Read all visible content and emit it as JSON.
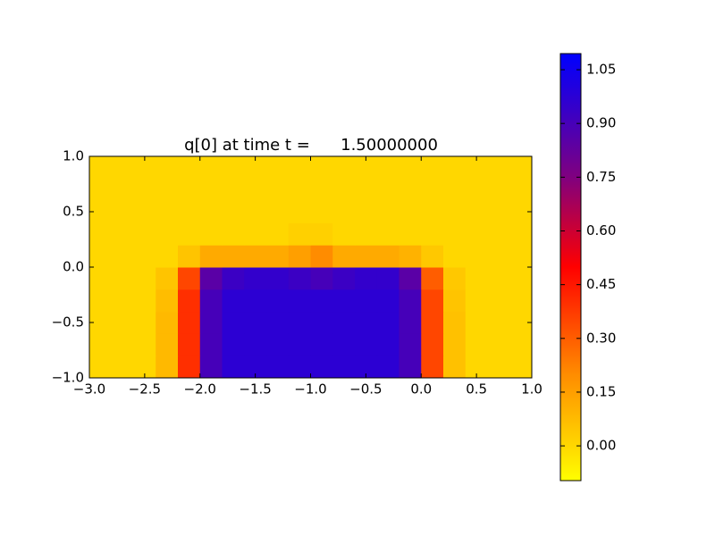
{
  "chart_data": {
    "type": "heatmap",
    "title": "q[0] at time t =      1.50000000",
    "x": [
      -2.9,
      -2.7,
      -2.5,
      -2.3,
      -2.1,
      -1.9,
      -1.7,
      -1.5,
      -1.3,
      -1.1,
      -0.9,
      -0.7,
      -0.5,
      -0.3,
      -0.1,
      0.1,
      0.3,
      0.5,
      0.7,
      0.9
    ],
    "y": [
      -0.9,
      -0.7,
      -0.5,
      -0.3,
      -0.1,
      0.1,
      0.3,
      0.5,
      0.7,
      0.9
    ],
    "z": [
      [
        0,
        0,
        0,
        0.08,
        0.4,
        0.9,
        0.97,
        0.97,
        0.97,
        0.97,
        0.97,
        0.97,
        0.97,
        0.97,
        0.9,
        0.35,
        0.06,
        0,
        0,
        0
      ],
      [
        0,
        0,
        0,
        0.08,
        0.4,
        0.9,
        0.97,
        0.97,
        0.97,
        0.97,
        0.97,
        0.97,
        0.97,
        0.97,
        0.9,
        0.35,
        0.06,
        0,
        0,
        0
      ],
      [
        0,
        0,
        0,
        0.08,
        0.4,
        0.9,
        0.97,
        0.97,
        0.97,
        0.97,
        0.97,
        0.97,
        0.97,
        0.97,
        0.9,
        0.35,
        0.06,
        0,
        0,
        0
      ],
      [
        0,
        0,
        0,
        0.07,
        0.4,
        0.9,
        0.97,
        0.97,
        0.97,
        0.97,
        0.97,
        0.97,
        0.97,
        0.97,
        0.9,
        0.35,
        0.05,
        0,
        0,
        0
      ],
      [
        0,
        0,
        0,
        0.05,
        0.35,
        0.85,
        0.93,
        0.95,
        0.95,
        0.93,
        0.9,
        0.93,
        0.95,
        0.95,
        0.85,
        0.3,
        0.04,
        0,
        0,
        0
      ],
      [
        0,
        0,
        0,
        0,
        0.05,
        0.12,
        0.12,
        0.12,
        0.12,
        0.15,
        0.2,
        0.12,
        0.12,
        0.12,
        0.1,
        0.04,
        0,
        0,
        0,
        0
      ],
      [
        0,
        0,
        0,
        0,
        0,
        0,
        0,
        0,
        0,
        0.02,
        0.02,
        0,
        0,
        0,
        0,
        0,
        0,
        0,
        0,
        0
      ],
      [
        0,
        0,
        0,
        0,
        0,
        0,
        0,
        0,
        0,
        0,
        0,
        0,
        0,
        0,
        0,
        0,
        0,
        0,
        0,
        0
      ],
      [
        0,
        0,
        0,
        0,
        0,
        0,
        0,
        0,
        0,
        0,
        0,
        0,
        0,
        0,
        0,
        0,
        0,
        0,
        0,
        0
      ],
      [
        0,
        0,
        0,
        0,
        0,
        0,
        0,
        0,
        0,
        0,
        0,
        0,
        0,
        0,
        0,
        0,
        0,
        0,
        0,
        0
      ]
    ],
    "xlim": [
      -3,
      1
    ],
    "xticks": [
      {
        "value": -3,
        "label": "−3.0"
      },
      {
        "value": -2.5,
        "label": "−2.5"
      },
      {
        "value": -2,
        "label": "−2.0"
      },
      {
        "value": -1.5,
        "label": "−1.5"
      },
      {
        "value": -1,
        "label": "−1.0"
      },
      {
        "value": -0.5,
        "label": "−0.5"
      },
      {
        "value": 0,
        "label": "0.0"
      },
      0.5,
      {
        "value": 1,
        "label": "1.0"
      }
    ],
    "ylim": [
      -1,
      1
    ],
    "yticks": [
      {
        "value": -1,
        "label": "−1.0"
      },
      {
        "value": -0.5,
        "label": "−0.5"
      },
      {
        "value": 0,
        "label": "0.0"
      },
      0.5,
      {
        "value": 1,
        "label": "1.0"
      }
    ],
    "clim": [
      -0.097,
      1.095
    ],
    "cticks": [
      {
        "value": 0,
        "label": "0.00"
      },
      {
        "value": 0.15,
        "label": "0.15"
      },
      {
        "value": 0.3,
        "label": "0.30"
      },
      {
        "value": 0.45,
        "label": "0.45"
      },
      {
        "value": 0.6,
        "label": "0.60"
      },
      {
        "value": 0.75,
        "label": "0.75"
      },
      {
        "value": 0.9,
        "label": "0.90"
      },
      {
        "value": 1.05,
        "label": "1.05"
      }
    ],
    "colormap": [
      {
        "value": -0.097,
        "color": "#ffff00"
      },
      {
        "value": 0,
        "color": "#ffd700"
      },
      {
        "value": 0.2,
        "color": "#ff8c00"
      },
      {
        "value": 0.5,
        "color": "#ff0000"
      },
      {
        "value": 0.75,
        "color": "#80007f"
      },
      {
        "value": 0.95,
        "color": "#3300cc"
      },
      {
        "value": 1.095,
        "color": "#0000ff"
      }
    ]
  }
}
